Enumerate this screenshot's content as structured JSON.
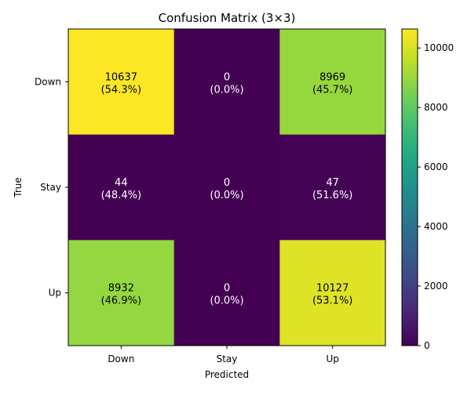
{
  "chart_data": {
    "type": "heatmap",
    "title": "Confusion Matrix (3×3)",
    "xlabel": "Predicted",
    "ylabel": "True",
    "x_categories": [
      "Down",
      "Stay",
      "Up"
    ],
    "y_categories": [
      "Down",
      "Stay",
      "Up"
    ],
    "values": [
      [
        10637,
        0,
        8969
      ],
      [
        44,
        0,
        47
      ],
      [
        8932,
        0,
        10127
      ]
    ],
    "cell_labels": [
      [
        [
          "10637",
          "(54.3%)"
        ],
        [
          "0",
          "(0.0%)"
        ],
        [
          "8969",
          "(45.7%)"
        ]
      ],
      [
        [
          "44",
          "(48.4%)"
        ],
        [
          "0",
          "(0.0%)"
        ],
        [
          "47",
          "(51.6%)"
        ]
      ],
      [
        [
          "8932",
          "(46.9%)"
        ],
        [
          "0",
          "(0.0%)"
        ],
        [
          "10127",
          "(53.1%)"
        ]
      ]
    ],
    "colorscale": "viridis",
    "color_range": [
      0,
      10637
    ],
    "colorbar_ticks": [
      0,
      2000,
      4000,
      6000,
      8000,
      10000
    ],
    "colorbar_tick_labels": [
      "0",
      "2000",
      "4000",
      "6000",
      "8000",
      "10000"
    ]
  }
}
